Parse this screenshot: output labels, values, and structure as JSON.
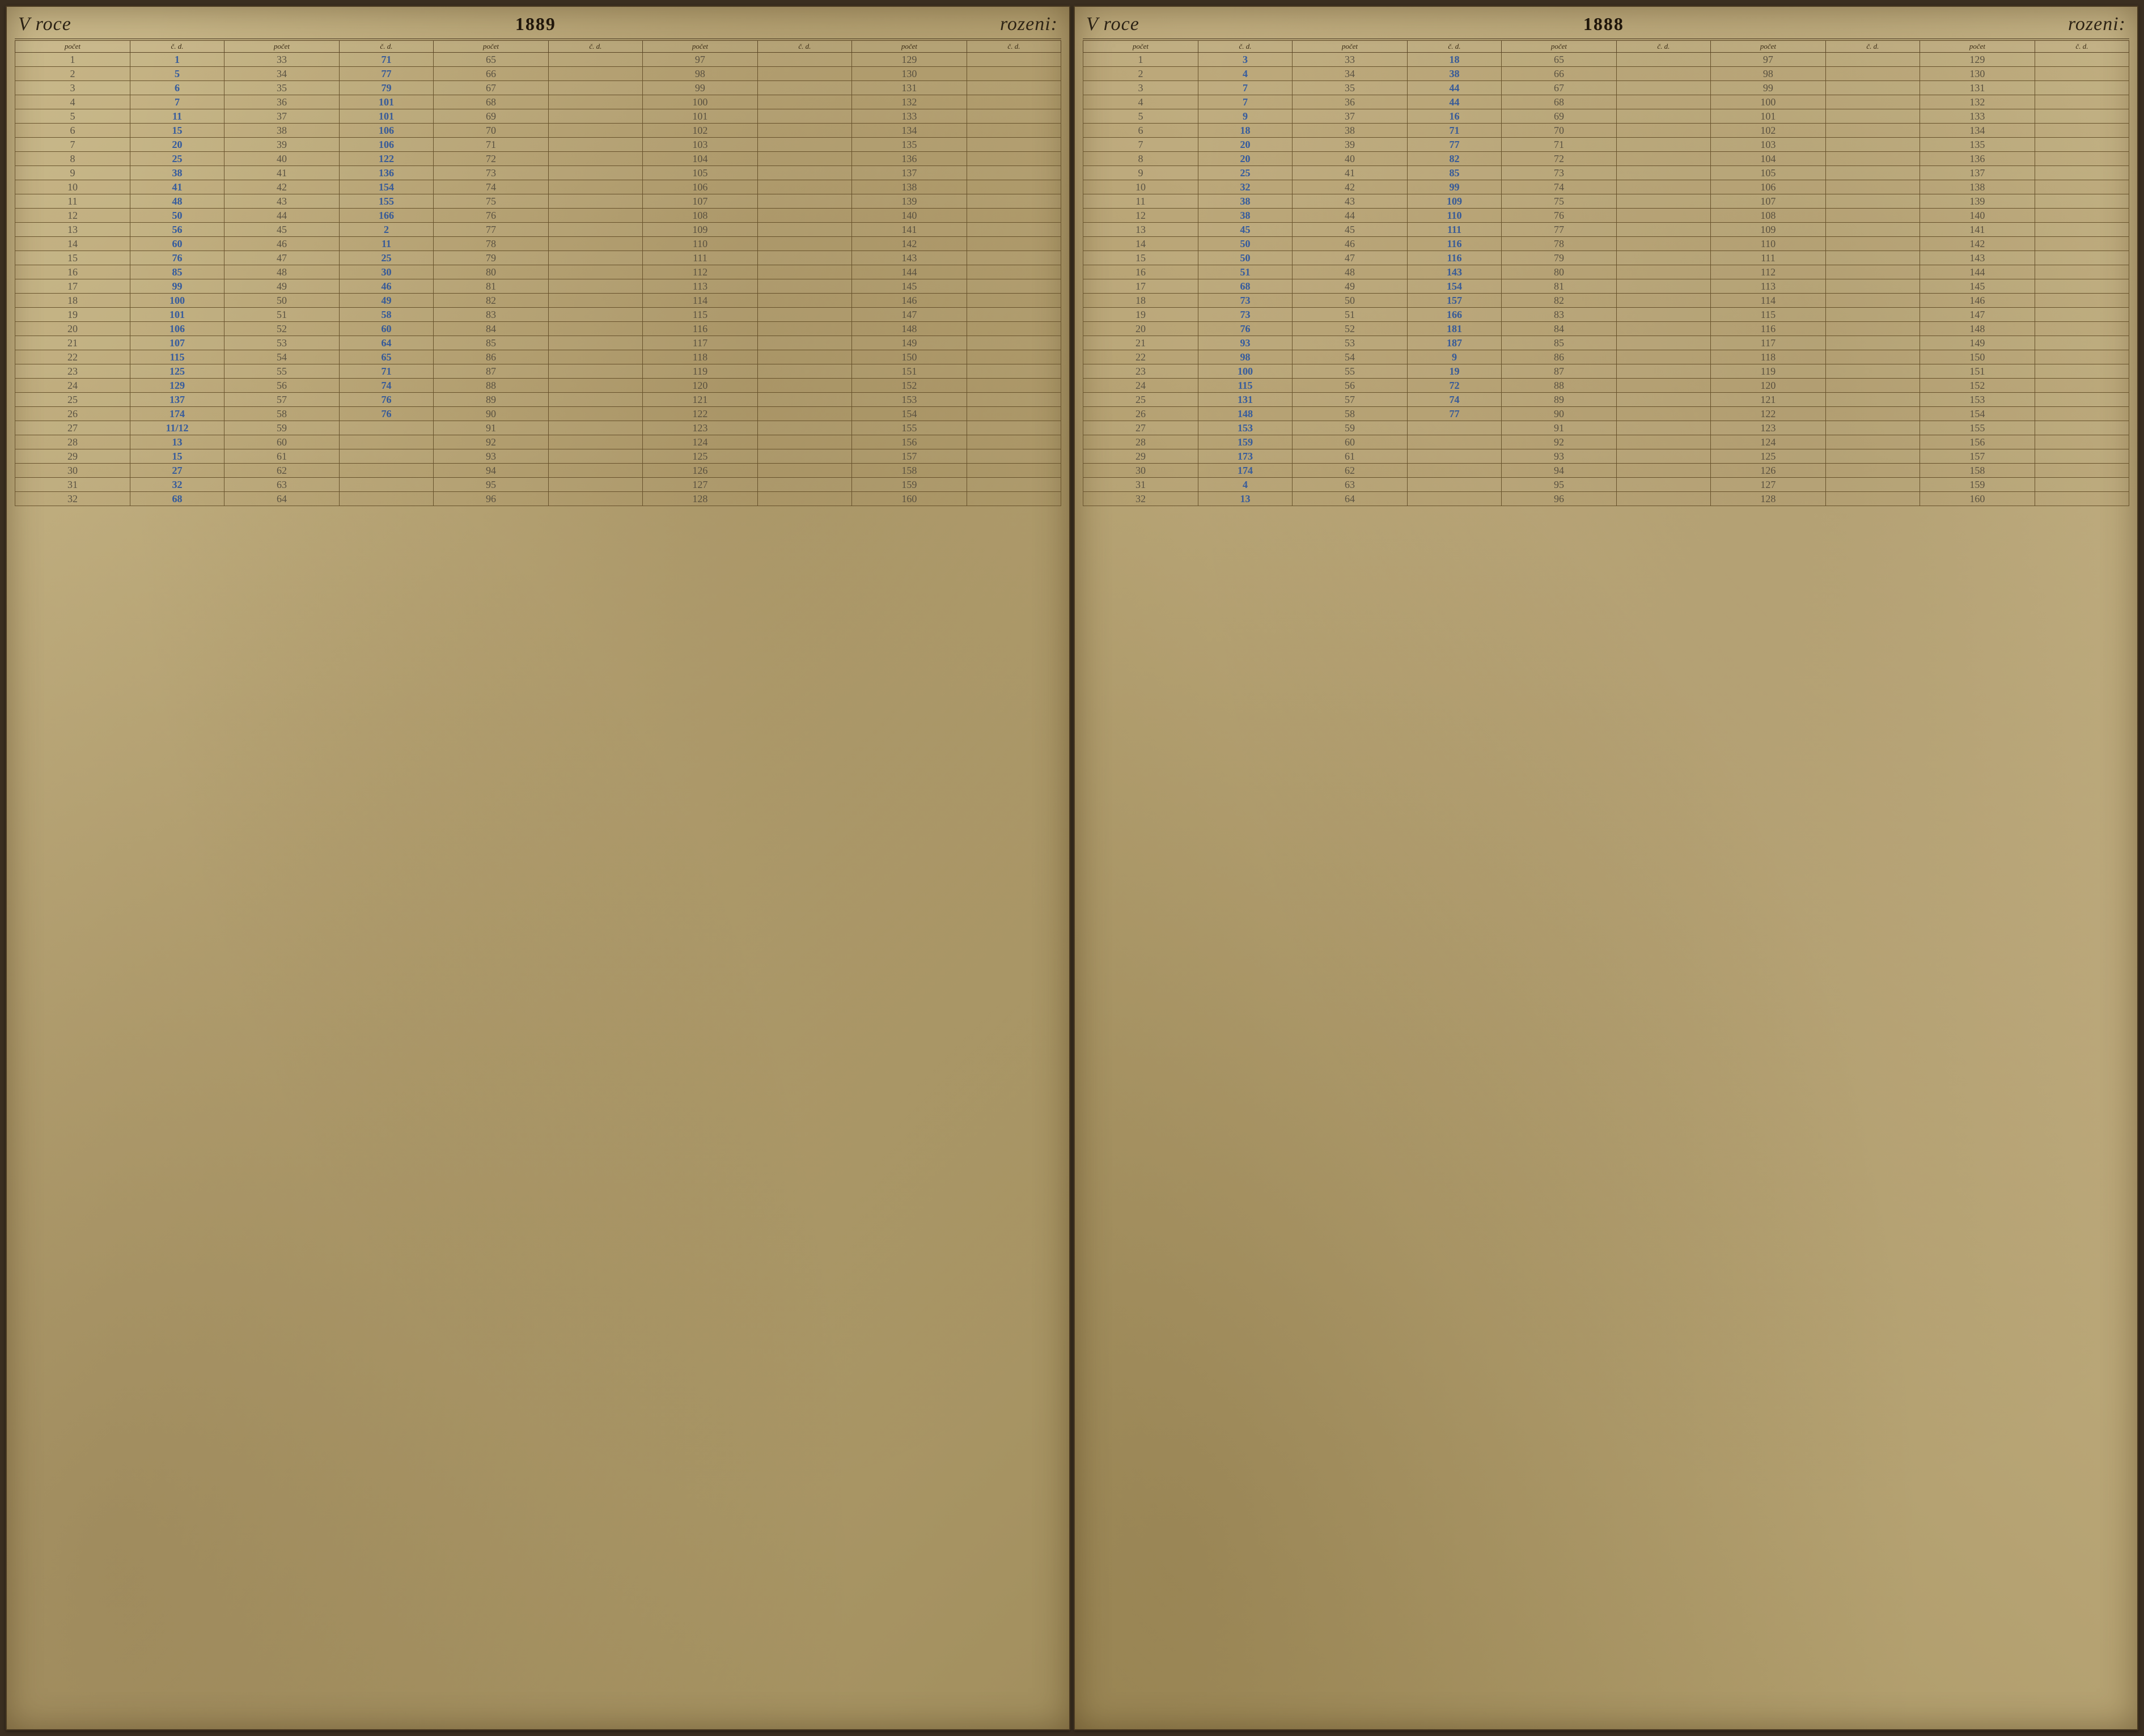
{
  "colors": {
    "paper_left": "#b8a575",
    "paper_right": "#bdaa7c",
    "border": "#5a4526",
    "ink_pencil": "#5a5344",
    "ink_blue": "#3a5f9e",
    "ink_black": "#2a2112",
    "title_ink": "#2b2215"
  },
  "fonts": {
    "script": "Brush Script MT",
    "title_size_pt": 26,
    "year_size_pt": 24,
    "header_size_pt": 10,
    "cell_size_pt": 14
  },
  "headers": {
    "pocet": "počet",
    "cd": "č. d."
  },
  "title": {
    "word1": "V roce",
    "word2": "rozeni:"
  },
  "left": {
    "year": "1889",
    "col1_pocet": [
      "1",
      "2",
      "3",
      "4",
      "5",
      "6",
      "7",
      "8",
      "9",
      "10",
      "11",
      "12",
      "13",
      "14",
      "15",
      "16",
      "17",
      "18",
      "19",
      "20",
      "21",
      "22",
      "23",
      "24",
      "25",
      "26",
      "27",
      "28",
      "29",
      "30",
      "31",
      "32"
    ],
    "col1_cd": [
      "1",
      "5",
      "6",
      "7",
      "11",
      "15",
      "20",
      "25",
      "38",
      "41",
      "48",
      "50",
      "56",
      "60",
      "76",
      "85",
      "99",
      "100",
      "101",
      "106",
      "107",
      "115",
      "125",
      "129",
      "137",
      "174",
      "11/12",
      "13",
      "15",
      "27",
      "32",
      "68"
    ],
    "col2_pocet": [
      "33",
      "34",
      "35",
      "36",
      "37",
      "38",
      "39",
      "40",
      "41",
      "42",
      "43",
      "44",
      "45",
      "46",
      "47",
      "48",
      "49",
      "50",
      "51",
      "52",
      "53",
      "54",
      "55",
      "56",
      "57",
      "58",
      "59",
      "60",
      "61",
      "62",
      "63",
      "64"
    ],
    "col2_cd": [
      "71",
      "77",
      "79",
      "101",
      "101",
      "106",
      "106",
      "122",
      "136",
      "154",
      "155",
      "166",
      "2",
      "11",
      "25",
      "30",
      "46",
      "49",
      "58",
      "60",
      "64",
      "65",
      "71",
      "74",
      "76",
      "76",
      "",
      "",
      "",
      "",
      "",
      ""
    ],
    "col3_pocet": [
      "65",
      "66",
      "67",
      "68",
      "69",
      "70",
      "71",
      "72",
      "73",
      "74",
      "75",
      "76",
      "77",
      "78",
      "79",
      "80",
      "81",
      "82",
      "83",
      "84",
      "85",
      "86",
      "87",
      "88",
      "89",
      "90",
      "91",
      "92",
      "93",
      "94",
      "95",
      "96"
    ],
    "col3_cd": [
      "",
      "",
      "",
      "",
      "",
      "",
      "",
      "",
      "",
      "",
      "",
      "",
      "",
      "",
      "",
      "",
      "",
      "",
      "",
      "",
      "",
      "",
      "",
      "",
      "",
      "",
      "",
      "",
      "",
      "",
      "",
      ""
    ],
    "col4_pocet": [
      "97",
      "98",
      "99",
      "100",
      "101",
      "102",
      "103",
      "104",
      "105",
      "106",
      "107",
      "108",
      "109",
      "110",
      "111",
      "112",
      "113",
      "114",
      "115",
      "116",
      "117",
      "118",
      "119",
      "120",
      "121",
      "122",
      "123",
      "124",
      "125",
      "126",
      "127",
      "128"
    ],
    "col4_cd": [
      "",
      "",
      "",
      "",
      "",
      "",
      "",
      "",
      "",
      "",
      "",
      "",
      "",
      "",
      "",
      "",
      "",
      "",
      "",
      "",
      "",
      "",
      "",
      "",
      "",
      "",
      "",
      "",
      "",
      "",
      "",
      ""
    ],
    "col5_pocet": [
      "129",
      "130",
      "131",
      "132",
      "133",
      "134",
      "135",
      "136",
      "137",
      "138",
      "139",
      "140",
      "141",
      "142",
      "143",
      "144",
      "145",
      "146",
      "147",
      "148",
      "149",
      "150",
      "151",
      "152",
      "153",
      "154",
      "155",
      "156",
      "157",
      "158",
      "159",
      "160"
    ],
    "col5_cd": [
      "",
      "",
      "",
      "",
      "",
      "",
      "",
      "",
      "",
      "",
      "",
      "",
      "",
      "",
      "",
      "",
      "",
      "",
      "",
      "",
      "",
      "",
      "",
      "",
      "",
      "",
      "",
      "",
      "",
      "",
      "",
      ""
    ]
  },
  "right": {
    "year": "1888",
    "col1_pocet": [
      "1",
      "2",
      "3",
      "4",
      "5",
      "6",
      "7",
      "8",
      "9",
      "10",
      "11",
      "12",
      "13",
      "14",
      "15",
      "16",
      "17",
      "18",
      "19",
      "20",
      "21",
      "22",
      "23",
      "24",
      "25",
      "26",
      "27",
      "28",
      "29",
      "30",
      "31",
      "32"
    ],
    "col1_cd": [
      "3",
      "4",
      "7",
      "7",
      "9",
      "18",
      "20",
      "20",
      "25",
      "32",
      "38",
      "38",
      "45",
      "50",
      "50",
      "51",
      "68",
      "73",
      "73",
      "76",
      "93",
      "98",
      "100",
      "115",
      "131",
      "148",
      "153",
      "159",
      "173",
      "174",
      "4",
      "13"
    ],
    "col2_pocet": [
      "33",
      "34",
      "35",
      "36",
      "37",
      "38",
      "39",
      "40",
      "41",
      "42",
      "43",
      "44",
      "45",
      "46",
      "47",
      "48",
      "49",
      "50",
      "51",
      "52",
      "53",
      "54",
      "55",
      "56",
      "57",
      "58",
      "59",
      "60",
      "61",
      "62",
      "63",
      "64"
    ],
    "col2_cd": [
      "18",
      "38",
      "44",
      "44",
      "16",
      "71",
      "77",
      "82",
      "85",
      "99",
      "109",
      "110",
      "111",
      "116",
      "116",
      "143",
      "154",
      "157",
      "166",
      "181",
      "187",
      "9",
      "19",
      "72",
      "74",
      "77",
      "",
      "",
      "",
      "",
      "",
      ""
    ],
    "col3_pocet": [
      "65",
      "66",
      "67",
      "68",
      "69",
      "70",
      "71",
      "72",
      "73",
      "74",
      "75",
      "76",
      "77",
      "78",
      "79",
      "80",
      "81",
      "82",
      "83",
      "84",
      "85",
      "86",
      "87",
      "88",
      "89",
      "90",
      "91",
      "92",
      "93",
      "94",
      "95",
      "96"
    ],
    "col3_cd": [
      "",
      "",
      "",
      "",
      "",
      "",
      "",
      "",
      "",
      "",
      "",
      "",
      "",
      "",
      "",
      "",
      "",
      "",
      "",
      "",
      "",
      "",
      "",
      "",
      "",
      "",
      "",
      "",
      "",
      "",
      "",
      ""
    ],
    "col4_pocet": [
      "97",
      "98",
      "99",
      "100",
      "101",
      "102",
      "103",
      "104",
      "105",
      "106",
      "107",
      "108",
      "109",
      "110",
      "111",
      "112",
      "113",
      "114",
      "115",
      "116",
      "117",
      "118",
      "119",
      "120",
      "121",
      "122",
      "123",
      "124",
      "125",
      "126",
      "127",
      "128"
    ],
    "col4_cd": [
      "",
      "",
      "",
      "",
      "",
      "",
      "",
      "",
      "",
      "",
      "",
      "",
      "",
      "",
      "",
      "",
      "",
      "",
      "",
      "",
      "",
      "",
      "",
      "",
      "",
      "",
      "",
      "",
      "",
      "",
      "",
      ""
    ],
    "col5_pocet": [
      "129",
      "130",
      "131",
      "132",
      "133",
      "134",
      "135",
      "136",
      "137",
      "138",
      "139",
      "140",
      "141",
      "142",
      "143",
      "144",
      "145",
      "146",
      "147",
      "148",
      "149",
      "150",
      "151",
      "152",
      "153",
      "154",
      "155",
      "156",
      "157",
      "158",
      "159",
      "160"
    ],
    "col5_cd": [
      "",
      "",
      "",
      "",
      "",
      "",
      "",
      "",
      "",
      "",
      "",
      "",
      "",
      "",
      "",
      "",
      "",
      "",
      "",
      "",
      "",
      "",
      "",
      "",
      "",
      "",
      "",
      "",
      "",
      "",
      "",
      ""
    ]
  }
}
